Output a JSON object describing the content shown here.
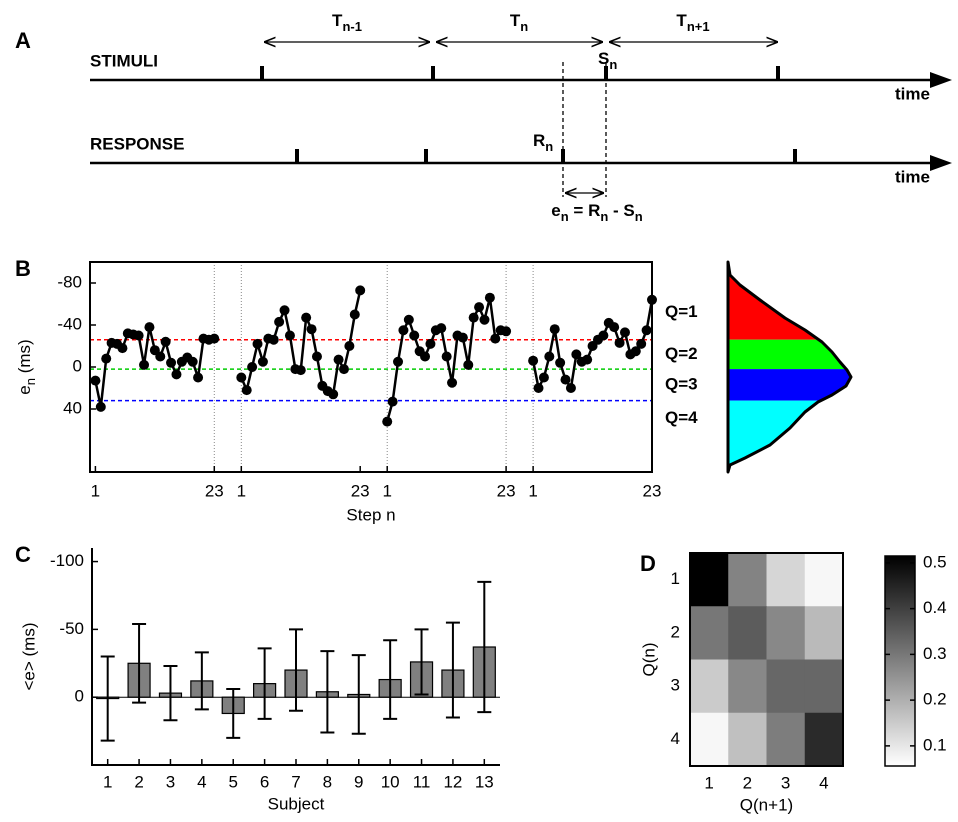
{
  "diagram": {
    "panel": "A",
    "rows": [
      {
        "label": "STIMULI",
        "axis_label": "time"
      },
      {
        "label": "RESPONSE",
        "axis_label": "time"
      }
    ],
    "intervals": [
      {
        "symbol": "T",
        "sub": "n-1"
      },
      {
        "symbol": "T",
        "sub": "n"
      },
      {
        "symbol": "T",
        "sub": "n+1"
      }
    ],
    "stimulus_mark": {
      "symbol": "S",
      "sub": "n"
    },
    "response_mark": {
      "symbol": "R",
      "sub": "n"
    },
    "formula": [
      {
        "symbol": "e",
        "sub": "n"
      },
      {
        "symbol": " = R",
        "sub": "n"
      },
      {
        "symbol": " - S",
        "sub": "n"
      }
    ]
  },
  "chart_data": [
    {
      "type": "line",
      "panel": "B",
      "ylabel": {
        "symbol": "e",
        "sub": "n",
        "rest": " (ms)"
      },
      "xlabel": "Step n",
      "xlim": [
        0,
        104
      ],
      "ylim": [
        -100,
        100
      ],
      "y_inverted": true,
      "yticks": [
        -80,
        -40,
        0,
        40
      ],
      "xticks": [
        {
          "value": 1,
          "label": "1"
        },
        {
          "value": 23,
          "label": "23"
        },
        {
          "value": 28,
          "label": "1"
        },
        {
          "value": 50,
          "label": "23"
        },
        {
          "value": 55,
          "label": "1"
        },
        {
          "value": 77,
          "label": "23"
        },
        {
          "value": 82,
          "label": "1"
        },
        {
          "value": 104,
          "label": "23"
        }
      ],
      "separators": [
        23,
        28,
        55,
        77,
        82
      ],
      "series": [
        {
          "color": "#000000",
          "x": [
            1,
            2,
            3,
            4,
            5,
            6,
            7,
            8,
            9,
            10,
            11,
            12,
            13,
            14,
            15,
            16,
            17,
            18,
            19,
            20,
            21,
            22,
            23
          ],
          "values": [
            13,
            38,
            -8,
            -23,
            -22,
            -18,
            -32,
            -31,
            -30,
            -2,
            -38,
            -16,
            -10,
            -24,
            -4,
            7,
            -5,
            -9,
            -5,
            10,
            -27,
            -26,
            -27
          ]
        },
        {
          "color": "#000000",
          "x": [
            28,
            29,
            30,
            31,
            32,
            33,
            34,
            35,
            36,
            37,
            38,
            39,
            40,
            41,
            42,
            43,
            44,
            45,
            46,
            47,
            48,
            49,
            50
          ],
          "values": [
            10,
            22,
            0,
            -22,
            -5,
            -27,
            -26,
            -43,
            -54,
            -30,
            2,
            3,
            -47,
            -36,
            -10,
            18,
            23,
            26,
            -7,
            2,
            -20,
            -50,
            -73
          ]
        },
        {
          "color": "#000000",
          "x": [
            55,
            56,
            57,
            58,
            59,
            60,
            61,
            62,
            63,
            64,
            65,
            66,
            67,
            68,
            69,
            70,
            71,
            72,
            73,
            74,
            75,
            76,
            77
          ],
          "values": [
            52,
            33,
            -5,
            -35,
            -45,
            -30,
            -15,
            -10,
            -22,
            -35,
            -37,
            -10,
            15,
            -30,
            -28,
            -2,
            -47,
            -57,
            -45,
            -66,
            -27,
            -35,
            -34
          ]
        },
        {
          "color": "#000000",
          "x": [
            82,
            83,
            84,
            85,
            86,
            87,
            88,
            89,
            90,
            91,
            92,
            93,
            94,
            95,
            96,
            97,
            98,
            99,
            100,
            101,
            102,
            103,
            104
          ],
          "values": [
            -6,
            20,
            10,
            -10,
            -36,
            -4,
            12,
            20,
            -12,
            -5,
            -7,
            -20,
            -26,
            -30,
            -42,
            -38,
            -23,
            -33,
            -12,
            -15,
            -22,
            -35,
            -64
          ]
        }
      ],
      "thresholds": [
        {
          "value": -26,
          "color": "#ff0000"
        },
        {
          "value": 2,
          "color": "#00cc00"
        },
        {
          "value": 32,
          "color": "#0000ff"
        }
      ],
      "quantiles": [
        {
          "label": "Q=1",
          "color": "#ff0000"
        },
        {
          "label": "Q=2",
          "color": "#00ff00"
        },
        {
          "label": "Q=3",
          "color": "#0000ff"
        },
        {
          "label": "Q=4",
          "color": "#00ffff"
        }
      ]
    },
    {
      "type": "bar",
      "panel": "C",
      "ylabel": "<e> (ms)",
      "xlabel": "Subject",
      "categories": [
        "1",
        "2",
        "3",
        "4",
        "5",
        "6",
        "7",
        "8",
        "9",
        "10",
        "11",
        "12",
        "13"
      ],
      "values": [
        1,
        -25,
        -3,
        -12,
        12,
        -10,
        -20,
        -4,
        -2,
        -13,
        -26,
        -20,
        -37
      ],
      "errors": [
        31,
        29,
        20,
        21,
        18,
        26,
        30,
        30,
        29,
        29,
        24,
        35,
        48
      ],
      "color": "#808080",
      "ylim": [
        -110,
        50
      ],
      "y_inverted": true,
      "yticks": [
        -100,
        -50,
        0
      ]
    },
    {
      "type": "heatmap",
      "panel": "D",
      "xlabel": "Q(n+1)",
      "ylabel": "Q(n)",
      "x_categories": [
        "1",
        "2",
        "3",
        "4"
      ],
      "y_categories": [
        "1",
        "2",
        "3",
        "4"
      ],
      "values": [
        [
          0.52,
          0.28,
          0.13,
          0.07
        ],
        [
          0.3,
          0.35,
          0.27,
          0.18
        ],
        [
          0.15,
          0.27,
          0.33,
          0.33
        ],
        [
          0.07,
          0.17,
          0.29,
          0.44
        ]
      ],
      "colormap": "gray",
      "clim": [
        0.056,
        0.515
      ],
      "cticks": [
        0.1,
        0.2,
        0.3,
        0.4,
        0.5
      ]
    }
  ]
}
